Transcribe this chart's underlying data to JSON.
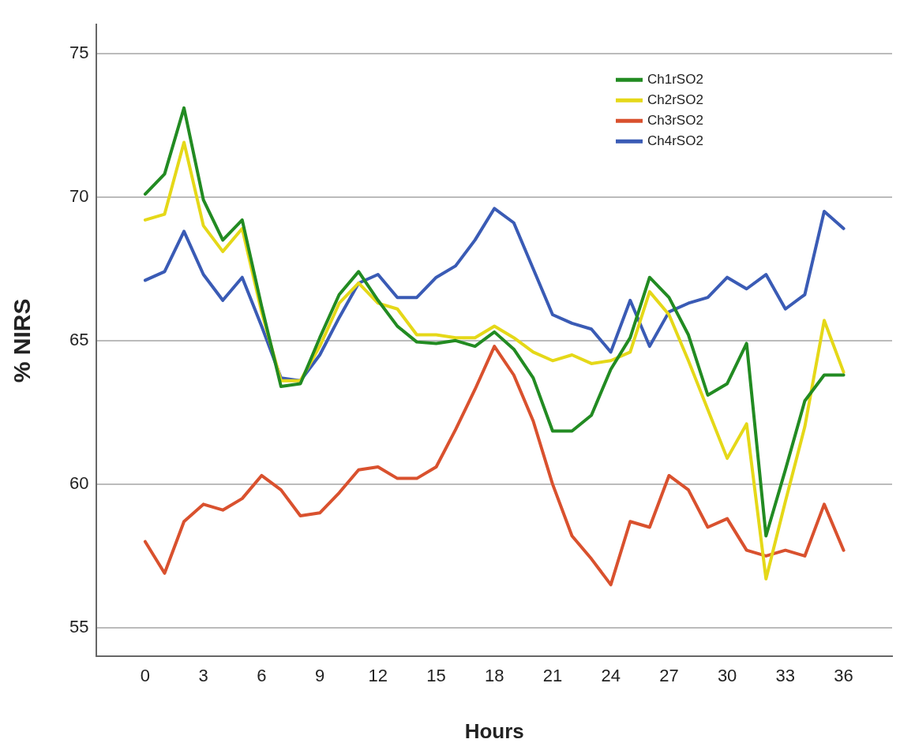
{
  "chart_data": {
    "type": "line",
    "xlabel": "Hours",
    "ylabel": "% NIRS",
    "x": [
      0,
      1,
      2,
      3,
      4,
      5,
      6,
      7,
      8,
      9,
      10,
      11,
      12,
      13,
      14,
      15,
      16,
      17,
      18,
      19,
      20,
      21,
      22,
      23,
      24,
      25,
      26,
      27,
      28,
      29,
      30,
      31,
      32,
      33,
      34,
      35,
      36
    ],
    "series": [
      {
        "name": "Ch1rSO2",
        "color": "#228b22",
        "values": [
          70.1,
          70.8,
          73.1,
          69.9,
          68.5,
          69.2,
          66.2,
          63.4,
          63.5,
          65.1,
          66.6,
          67.4,
          66.4,
          65.5,
          64.95,
          64.9,
          65.0,
          64.8,
          65.3,
          64.7,
          63.7,
          61.85,
          61.85,
          62.4,
          64.0,
          65.1,
          67.2,
          66.5,
          65.2,
          63.1,
          63.5,
          64.9,
          58.2,
          60.5,
          62.9,
          63.8,
          63.8
        ]
      },
      {
        "name": "Ch2rSO2",
        "color": "#e5d818",
        "values": [
          69.2,
          69.4,
          71.9,
          69.0,
          68.1,
          68.9,
          66.0,
          63.6,
          63.6,
          64.8,
          66.3,
          67.0,
          66.3,
          66.1,
          65.2,
          65.2,
          65.1,
          65.1,
          65.5,
          65.1,
          64.6,
          64.3,
          64.5,
          64.2,
          64.3,
          64.6,
          66.7,
          65.9,
          64.3,
          62.6,
          60.9,
          62.1,
          56.7,
          59.4,
          62.0,
          65.7,
          63.9
        ]
      },
      {
        "name": "Ch3rSO2",
        "color": "#d9512e",
        "values": [
          58.0,
          56.9,
          58.7,
          59.3,
          59.1,
          59.5,
          60.3,
          59.8,
          58.9,
          59.0,
          59.7,
          60.5,
          60.6,
          60.2,
          60.2,
          60.6,
          61.9,
          63.3,
          64.8,
          63.8,
          62.2,
          60.0,
          58.2,
          57.4,
          56.5,
          58.7,
          58.5,
          60.3,
          59.8,
          58.5,
          58.8,
          57.7,
          57.5,
          57.7,
          57.5,
          59.3,
          57.7
        ]
      },
      {
        "name": "Ch4rSO2",
        "color": "#3a5bb5",
        "values": [
          67.1,
          67.4,
          68.8,
          67.3,
          66.4,
          67.2,
          65.5,
          63.7,
          63.6,
          64.5,
          65.8,
          67.0,
          67.3,
          66.5,
          66.5,
          67.2,
          67.6,
          68.5,
          69.6,
          69.1,
          67.5,
          65.9,
          65.6,
          65.4,
          64.6,
          66.4,
          64.8,
          66.0,
          66.3,
          66.5,
          67.2,
          66.8,
          67.3,
          66.1,
          66.6,
          69.5,
          68.9
        ]
      }
    ],
    "xlim": [
      -2.5,
      38.5
    ],
    "xticks": [
      0,
      3,
      6,
      9,
      12,
      15,
      18,
      21,
      24,
      27,
      30,
      33,
      36
    ],
    "ylim": [
      54,
      76
    ],
    "yticks": [
      55,
      60,
      65,
      70,
      75
    ],
    "grid": "y",
    "legend": "top right",
    "marker": "none",
    "line_style": "solid"
  }
}
